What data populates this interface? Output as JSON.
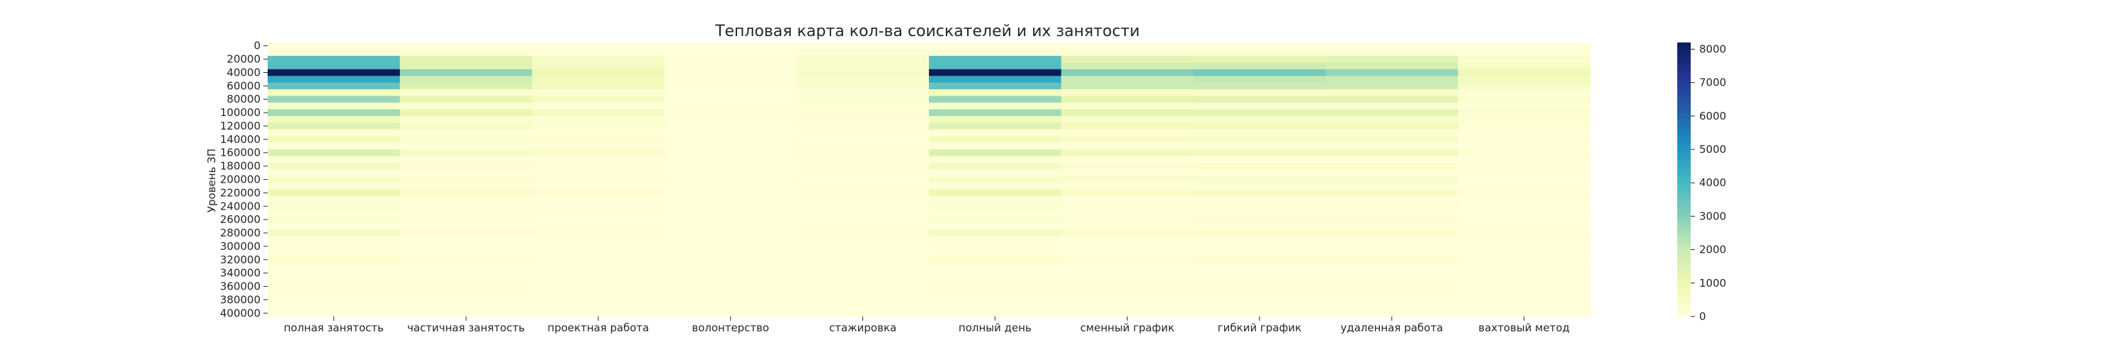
{
  "chart_data": {
    "type": "heatmap",
    "title": "Тепловая карта кол-ва соискателей и их занятости",
    "xlabel": "",
    "ylabel": "Уровень ЗП",
    "x_categories": [
      "полная занятость",
      "частичная занятость",
      "проектная работа",
      "волонтерство",
      "стажировка",
      "полный день",
      "сменный график",
      "гибкий график",
      "удаленная работа",
      "вахтовый метод"
    ],
    "y_tick_labels": [
      "0",
      "20000",
      "40000",
      "60000",
      "80000",
      "100000",
      "120000",
      "140000",
      "160000",
      "180000",
      "200000",
      "220000",
      "240000",
      "260000",
      "280000",
      "300000",
      "320000",
      "340000",
      "360000",
      "380000",
      "400000"
    ],
    "y_bins": [
      0,
      10000,
      20000,
      30000,
      40000,
      50000,
      60000,
      70000,
      80000,
      90000,
      100000,
      110000,
      120000,
      130000,
      140000,
      150000,
      160000,
      170000,
      180000,
      190000,
      200000,
      210000,
      220000,
      230000,
      240000,
      250000,
      260000,
      270000,
      280000,
      290000,
      300000,
      310000,
      320000,
      330000,
      340000,
      350000,
      360000,
      370000,
      380000,
      390000,
      400000
    ],
    "columns": [
      {
        "name": "полная занятость",
        "values": [
          0,
          150,
          3700,
          3800,
          8200,
          4500,
          3500,
          700,
          2700,
          400,
          2600,
          700,
          1400,
          150,
          700,
          100,
          1500,
          100,
          600,
          80,
          500,
          100,
          1000,
          50,
          200,
          40,
          300,
          30,
          600,
          20,
          30,
          20,
          300,
          20,
          20,
          20,
          100,
          20,
          20,
          20,
          20
        ]
      },
      {
        "name": "частичная занятость",
        "values": [
          0,
          150,
          1300,
          1300,
          2800,
          1800,
          1500,
          300,
          1100,
          200,
          1100,
          300,
          500,
          60,
          300,
          40,
          500,
          40,
          200,
          30,
          200,
          40,
          300,
          20,
          60,
          20,
          100,
          10,
          200,
          10,
          10,
          10,
          100,
          10,
          10,
          10,
          30,
          10,
          10,
          10,
          10
        ]
      },
      {
        "name": "проектная работа",
        "values": [
          0,
          70,
          500,
          600,
          1000,
          800,
          800,
          200,
          600,
          100,
          600,
          200,
          300,
          40,
          200,
          30,
          350,
          30,
          150,
          20,
          150,
          30,
          200,
          10,
          40,
          10,
          60,
          10,
          150,
          10,
          10,
          10,
          60,
          10,
          10,
          10,
          20,
          10,
          10,
          10,
          10
        ]
      },
      {
        "name": "волонтерство",
        "values": [
          0,
          5,
          30,
          30,
          60,
          40,
          40,
          10,
          30,
          5,
          30,
          10,
          20,
          5,
          10,
          5,
          20,
          5,
          10,
          0,
          10,
          0,
          10,
          0,
          0,
          0,
          5,
          0,
          10,
          0,
          0,
          0,
          5,
          0,
          0,
          0,
          0,
          0,
          0,
          0,
          0
        ]
      },
      {
        "name": "стажировка",
        "values": [
          0,
          150,
          350,
          350,
          500,
          300,
          300,
          80,
          200,
          40,
          200,
          50,
          100,
          10,
          60,
          10,
          100,
          10,
          40,
          5,
          40,
          10,
          60,
          5,
          10,
          5,
          20,
          5,
          40,
          5,
          5,
          5,
          20,
          5,
          5,
          5,
          5,
          5,
          5,
          5,
          5
        ]
      },
      {
        "name": "полный день",
        "values": [
          0,
          150,
          3700,
          3800,
          8200,
          4500,
          3500,
          700,
          2700,
          400,
          2600,
          700,
          1400,
          150,
          700,
          100,
          1500,
          100,
          600,
          80,
          500,
          100,
          1000,
          50,
          200,
          40,
          300,
          30,
          600,
          20,
          30,
          20,
          300,
          20,
          20,
          20,
          100,
          20,
          20,
          20,
          20
        ]
      },
      {
        "name": "сменный график",
        "values": [
          0,
          150,
          1300,
          1700,
          3000,
          2000,
          1900,
          400,
          1200,
          300,
          1200,
          400,
          700,
          80,
          400,
          60,
          700,
          60,
          300,
          40,
          300,
          50,
          400,
          30,
          100,
          20,
          150,
          20,
          300,
          10,
          20,
          10,
          150,
          10,
          10,
          10,
          50,
          10,
          10,
          10,
          10
        ]
      },
      {
        "name": "гибкий график",
        "values": [
          0,
          150,
          1200,
          1800,
          3200,
          2100,
          2000,
          400,
          1300,
          300,
          1300,
          400,
          800,
          90,
          450,
          70,
          800,
          60,
          350,
          40,
          350,
          60,
          450,
          30,
          120,
          20,
          180,
          20,
          350,
          10,
          20,
          10,
          180,
          10,
          10,
          10,
          60,
          10,
          10,
          10,
          10
        ]
      },
      {
        "name": "удаленная работа",
        "values": [
          0,
          150,
          1400,
          1700,
          2800,
          2000,
          1900,
          400,
          1300,
          300,
          1300,
          400,
          800,
          90,
          450,
          70,
          800,
          60,
          350,
          40,
          350,
          60,
          450,
          30,
          120,
          20,
          180,
          20,
          350,
          10,
          20,
          10,
          180,
          10,
          10,
          10,
          60,
          10,
          10,
          10,
          10
        ]
      },
      {
        "name": "вахтовый метод",
        "values": [
          0,
          40,
          300,
          500,
          900,
          700,
          500,
          120,
          300,
          60,
          300,
          80,
          150,
          20,
          80,
          10,
          150,
          10,
          60,
          5,
          60,
          10,
          80,
          5,
          20,
          5,
          30,
          5,
          60,
          5,
          5,
          5,
          30,
          5,
          5,
          5,
          10,
          5,
          5,
          5,
          5
        ]
      }
    ],
    "colormap": "YlGnBu",
    "colorbar": {
      "min": 0,
      "max": 8200,
      "ticks": [
        0,
        1000,
        2000,
        3000,
        4000,
        5000,
        6000,
        7000,
        8000
      ]
    },
    "grid": false
  }
}
